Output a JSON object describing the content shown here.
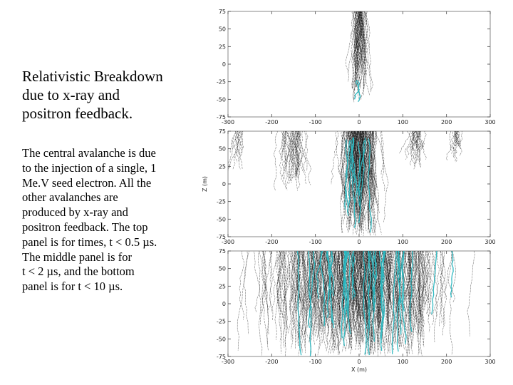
{
  "slide": {
    "title_lines": [
      "Relativistic Breakdown",
      "due to x-ray and",
      "positron feedback."
    ],
    "description_lines": [
      "The central avalanche is due",
      "to the injection of a single, 1",
      "Me.V seed electron.  All the",
      "other avalanches are",
      "produced by x-ray and",
      "positron feedback.  The top",
      "panel is for times, t < 0.5 µs.",
      "The middle panel is for",
      "t < 2 µs, and the bottom",
      "panel is for t < 10 µs."
    ]
  },
  "colors": {
    "seed_track": "#2ab7c0",
    "feedback_track": "#111111",
    "axes": "#888888"
  },
  "chart_data": [
    {
      "type": "line",
      "description_panel": "top",
      "time_window": "t < 0.5 µs",
      "xlim": [
        -300,
        300
      ],
      "ylim": [
        -75,
        75
      ],
      "x_ticks": [
        -300,
        -200,
        -100,
        0,
        100,
        200,
        300
      ],
      "y_ticks": [
        75,
        50,
        25,
        0,
        -25,
        -50,
        -75
      ],
      "xlabel": "",
      "ylabel": "",
      "track_groups": [
        {
          "color": "feedback",
          "center_x": 0,
          "spread_x": 22,
          "count": 60,
          "z_range": [
            -55,
            75
          ]
        },
        {
          "color": "seed",
          "center_x": -5,
          "spread_x": 3,
          "count": 2,
          "z_range": [
            -75,
            -25
          ]
        }
      ]
    },
    {
      "type": "line",
      "description_panel": "middle",
      "time_window": "t < 2 µs",
      "xlim": [
        -300,
        300
      ],
      "ylim": [
        -75,
        75
      ],
      "x_ticks": [
        -300,
        -200,
        -100,
        0,
        100,
        200,
        300
      ],
      "y_ticks": [
        75,
        50,
        25,
        0,
        -25,
        -50,
        -75
      ],
      "xlabel": "",
      "ylabel": "Z (m)",
      "track_groups": [
        {
          "color": "feedback",
          "center_x": 0,
          "spread_x": 60,
          "count": 180,
          "z_range": [
            -75,
            75
          ]
        },
        {
          "color": "feedback",
          "center_x": -150,
          "spread_x": 45,
          "count": 40,
          "z_range": [
            -10,
            75
          ]
        },
        {
          "color": "feedback",
          "center_x": 130,
          "spread_x": 25,
          "count": 25,
          "z_range": [
            20,
            75
          ]
        },
        {
          "color": "feedback",
          "center_x": 220,
          "spread_x": 15,
          "count": 15,
          "z_range": [
            30,
            75
          ]
        },
        {
          "color": "feedback",
          "center_x": -275,
          "spread_x": 15,
          "count": 12,
          "z_range": [
            20,
            75
          ]
        },
        {
          "color": "seed",
          "center_x": 0,
          "spread_x": 45,
          "count": 10,
          "z_range": [
            -75,
            60
          ]
        }
      ]
    },
    {
      "type": "line",
      "description_panel": "bottom",
      "time_window": "t < 10 µs",
      "xlim": [
        -300,
        300
      ],
      "ylim": [
        -75,
        75
      ],
      "x_ticks": [
        -300,
        -200,
        -100,
        0,
        100,
        200,
        300
      ],
      "y_ticks": [
        75,
        50,
        25,
        0,
        -25,
        -50,
        -75
      ],
      "xlabel": "X (m)",
      "ylabel": "",
      "track_groups": [
        {
          "color": "feedback",
          "center_x": 0,
          "spread_x": 300,
          "count": 520,
          "z_range": [
            -75,
            75
          ]
        },
        {
          "color": "seed",
          "center_x": 0,
          "spread_x": 290,
          "count": 40,
          "z_range": [
            -75,
            75
          ]
        }
      ]
    }
  ]
}
